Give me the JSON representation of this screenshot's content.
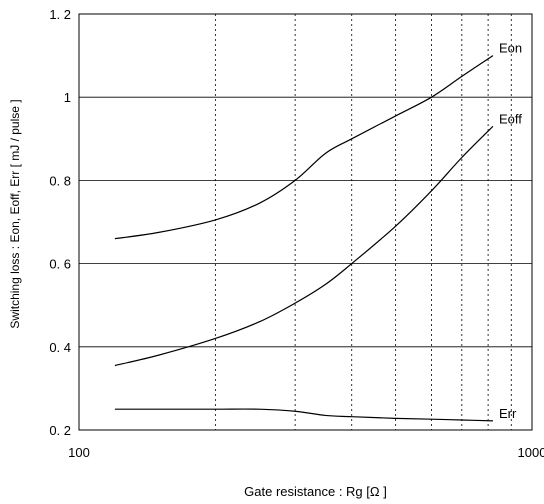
{
  "chart_data": {
    "type": "line",
    "xlabel": "Gate resistance  :  Rg  [Ω ]",
    "ylabel": "Switching loss  :  Eon, Eoff, Err  [ mJ / pulse ]",
    "xscale": "log",
    "xlim": [
      100,
      1000
    ],
    "ylim": [
      0.2,
      1.2
    ],
    "x_tick_labels": [
      "100",
      "1000"
    ],
    "y_ticks": [
      0.2,
      0.4,
      0.6,
      0.8,
      1.0,
      1.2
    ],
    "y_tick_labels": [
      "0. 2",
      "0. 4",
      "0. 6",
      "0. 8",
      "1",
      "1. 2"
    ],
    "grid": {
      "horizontal": "solid",
      "vertical": "dotted (log minor decades)"
    },
    "series": [
      {
        "name": "Eon",
        "points": [
          [
            120,
            0.66
          ],
          [
            150,
            0.675
          ],
          [
            200,
            0.705
          ],
          [
            250,
            0.745
          ],
          [
            300,
            0.8
          ],
          [
            350,
            0.865
          ],
          [
            400,
            0.9
          ],
          [
            500,
            0.955
          ],
          [
            600,
            1.0
          ],
          [
            700,
            1.05
          ],
          [
            820,
            1.1
          ]
        ]
      },
      {
        "name": "Eoff",
        "points": [
          [
            120,
            0.355
          ],
          [
            150,
            0.38
          ],
          [
            200,
            0.42
          ],
          [
            250,
            0.46
          ],
          [
            300,
            0.505
          ],
          [
            350,
            0.55
          ],
          [
            400,
            0.6
          ],
          [
            500,
            0.69
          ],
          [
            600,
            0.775
          ],
          [
            700,
            0.855
          ],
          [
            820,
            0.93
          ]
        ]
      },
      {
        "name": "Err",
        "points": [
          [
            120,
            0.25
          ],
          [
            150,
            0.25
          ],
          [
            200,
            0.25
          ],
          [
            250,
            0.25
          ],
          [
            300,
            0.245
          ],
          [
            350,
            0.235
          ],
          [
            400,
            0.232
          ],
          [
            500,
            0.228
          ],
          [
            600,
            0.226
          ],
          [
            700,
            0.224
          ],
          [
            820,
            0.222
          ]
        ]
      }
    ]
  }
}
